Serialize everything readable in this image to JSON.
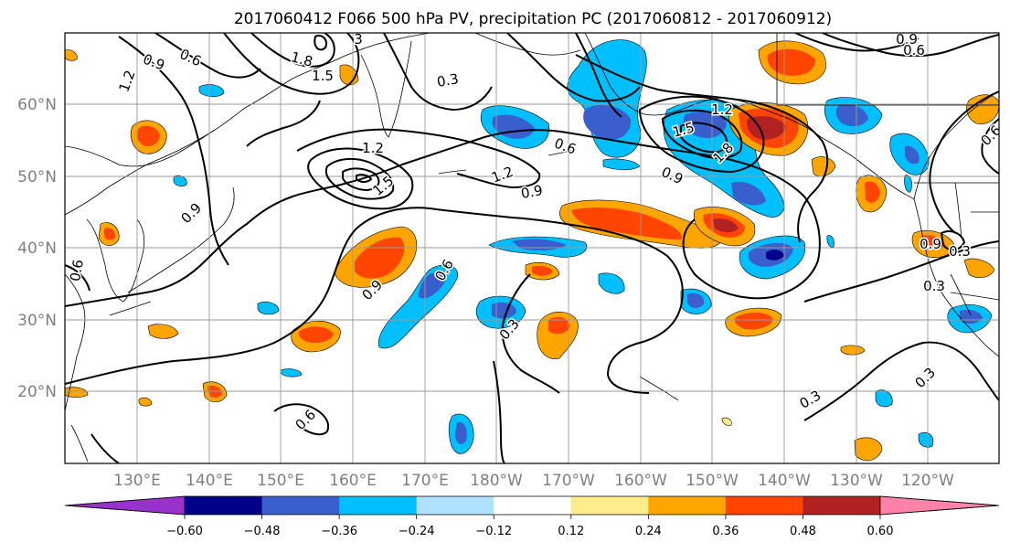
{
  "map": {
    "title": "2017060412 F066 500 hPa PV, precipitation PC (2017060812 - 2017060912)",
    "lat_labels": [
      "60°N",
      "50°N",
      "40°N",
      "30°N",
      "20°N"
    ],
    "lon_labels": [
      "130°E",
      "140°E",
      "150°E",
      "160°E",
      "170°E",
      "180°W",
      "170°W",
      "160°W",
      "150°W",
      "140°W",
      "130°W",
      "120°W"
    ],
    "contour_labels": [
      "0.9",
      "0.6",
      "1.2",
      "1.8",
      "1.5",
      "3",
      "0.3",
      "1.2",
      "1.5",
      "0.6",
      "1.2",
      "0.9",
      "0.9",
      "0.6",
      "1.5",
      "1.2",
      "1.8",
      "0.9",
      "0.6",
      "0.9",
      "0.6",
      "0.3",
      "0.3",
      "0.3",
      "0.3",
      "0.6",
      "0.3",
      "0.9",
      "0.6",
      "0.9"
    ]
  },
  "colorbar": {
    "ticks": [
      "−0.60",
      "−0.48",
      "−0.36",
      "−0.24",
      "−0.12",
      "0.12",
      "0.24",
      "0.36",
      "0.48",
      "0.60"
    ],
    "colors": [
      "#9932cc",
      "#00008b",
      "#3a5fcd",
      "#00bfff",
      "#b0e2ff",
      "#ffffff",
      "#ffec8b",
      "#ffa500",
      "#ff4500",
      "#b22222",
      "#ff82ab"
    ]
  },
  "palette": {
    "strong_neg": "#00008b",
    "mid_neg": "#3a5fcd",
    "neg": "#00bfff",
    "weak_neg": "#b0e2ff",
    "weak_pos": "#ffec8b",
    "pos": "#ffa500",
    "mid_pos": "#ff4500",
    "strong_pos": "#b22222"
  }
}
